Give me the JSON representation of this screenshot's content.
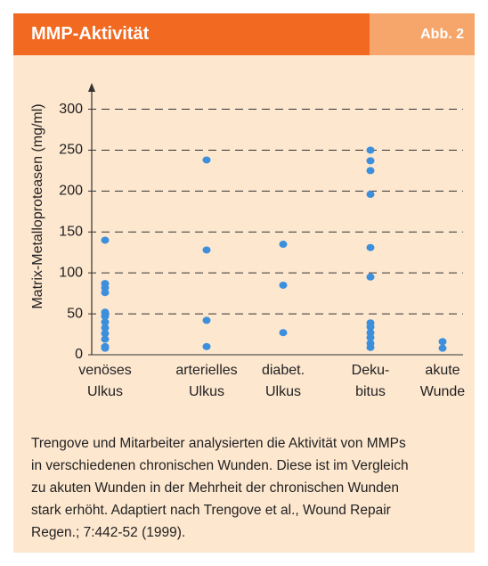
{
  "header": {
    "title": "MMP-Aktivität",
    "figure": "Abb. 2"
  },
  "chart_data": {
    "type": "scatter",
    "ylabel": "Matrix-Metalloproteasen (mg/ml)",
    "categories": [
      [
        "venöses",
        "Ulkus"
      ],
      [
        "arterielles",
        "Ulkus"
      ],
      [
        "diabet.",
        "Ulkus"
      ],
      [
        "Deku-",
        "bitus"
      ],
      [
        "akute",
        "Wunde"
      ]
    ],
    "values": [
      [
        140,
        87,
        82,
        76,
        52,
        47,
        40,
        33,
        26,
        19,
        10,
        8
      ],
      [
        238,
        128,
        42,
        10
      ],
      [
        135,
        85,
        27
      ],
      [
        250,
        237,
        225,
        196,
        131,
        95,
        39,
        34,
        27,
        21,
        14,
        9
      ],
      [
        16,
        8
      ]
    ],
    "color": "#3b8fdc",
    "ylim": [
      0,
      330
    ],
    "yticks": [
      0,
      50,
      100,
      150,
      200,
      250,
      300
    ],
    "grid": true
  },
  "caption": [
    "Trengove und Mitarbeiter analysierten die Aktivität von MMPs",
    "in verschiedenen chronischen Wunden. Diese ist im Vergleich",
    "zu akuten Wunden in der Mehrheit der chronischen Wunden",
    "stark erhöht. Adaptiert nach Trengove et al., Wound Repair",
    "Regen.; 7:442-52 (1999)."
  ]
}
